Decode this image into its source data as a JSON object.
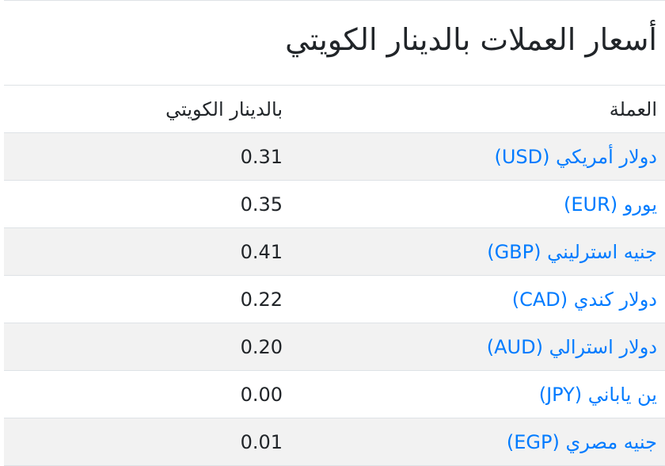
{
  "title": "أسعار العملات بالدينار الكويتي",
  "headers": {
    "currency": "العملة",
    "value": "بالدينار الكويتي"
  },
  "rows": [
    {
      "currency": "دولار أمريكي (USD)",
      "value": "0.31"
    },
    {
      "currency": "يورو (EUR)",
      "value": "0.35"
    },
    {
      "currency": "جنيه استرليني (GBP)",
      "value": "0.41"
    },
    {
      "currency": "دولار كندي (CAD)",
      "value": "0.22"
    },
    {
      "currency": "دولار استرالي (AUD)",
      "value": "0.20"
    },
    {
      "currency": "ين ياباني (JPY)",
      "value": "0.00"
    },
    {
      "currency": "جنيه مصري (EGP)",
      "value": "0.01"
    }
  ],
  "colors": {
    "link": "#007bff",
    "stripe": "#f2f2f2",
    "border": "#dee2e6"
  }
}
